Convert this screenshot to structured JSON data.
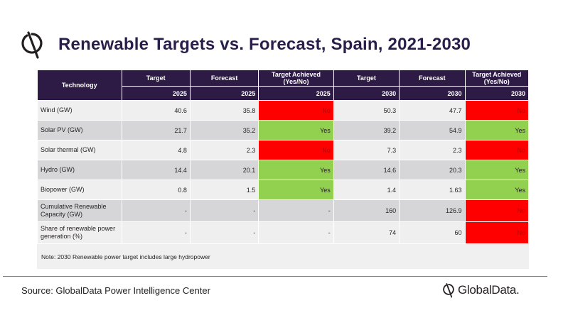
{
  "title": "Renewable Targets vs. Forecast, Spain, 2021-2030",
  "logo_icon": "globaldata-logo-icon",
  "colors": {
    "header_bg": "#2d1b46",
    "yes": "#92d050",
    "no": "#ff0000"
  },
  "table": {
    "header_row1": [
      "Technology",
      "Target",
      "Forecast",
      "Target Achieved (Yes/No)",
      "Target",
      "Forecast",
      "Target Achieved (Yes/No)"
    ],
    "header_row2": [
      "2025",
      "2025",
      "2025",
      "2030",
      "2030",
      "2030"
    ],
    "rows": [
      {
        "label": "Wind (GW)",
        "cells": [
          "40.6",
          "35.8",
          "No",
          "50.3",
          "47.7",
          "No"
        ]
      },
      {
        "label": "Solar PV (GW)",
        "cells": [
          "21.7",
          "35.2",
          "Yes",
          "39.2",
          "54.9",
          "Yes"
        ]
      },
      {
        "label": "Solar thermal (GW)",
        "cells": [
          "4.8",
          "2.3",
          "No",
          "7.3",
          "2.3",
          "No"
        ]
      },
      {
        "label": "Hydro (GW)",
        "cells": [
          "14.4",
          "20.1",
          "Yes",
          "14.6",
          "20.3",
          "Yes"
        ]
      },
      {
        "label": "Biopower (GW)",
        "cells": [
          "0.8",
          "1.5",
          "Yes",
          "1.4",
          "1.63",
          "Yes"
        ]
      },
      {
        "label": "Cumulative Renewable Capacity (GW)",
        "cells": [
          "-",
          "-",
          "-",
          "160",
          "126.9",
          "No"
        ]
      },
      {
        "label": "Share of renewable power generation (%)",
        "cells": [
          "-",
          "-",
          "-",
          "74",
          "60",
          "No"
        ]
      }
    ],
    "note": "Note: 2030 Renewable power target includes large hydropower"
  },
  "source": "Source: GlobalData Power Intelligence Center",
  "brand": "GlobalData."
}
